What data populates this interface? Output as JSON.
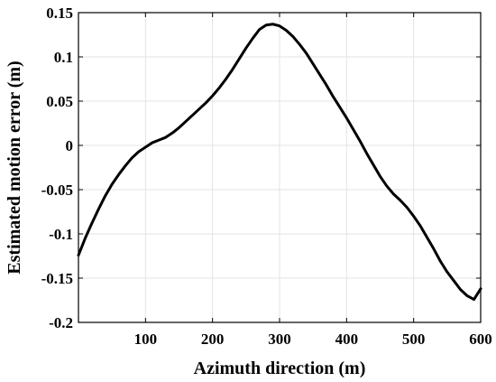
{
  "chart_data": {
    "type": "line",
    "title": "",
    "xlabel": "Azimuth direction (m)",
    "ylabel": "Estimated motion error (m)",
    "xlim": [
      0,
      600
    ],
    "ylim": [
      -0.2,
      0.15
    ],
    "xticks": [
      100,
      200,
      300,
      400,
      500,
      600
    ],
    "xtick_labels": [
      "100",
      "200",
      "300",
      "400",
      "500",
      "600"
    ],
    "yticks": [
      0.15,
      0.1,
      0.05,
      0,
      -0.05,
      -0.1,
      -0.15,
      -0.2
    ],
    "ytick_labels": [
      "0.15",
      "0.1",
      "0.05",
      "0",
      "-0.05",
      "-0.1",
      "-0.15",
      "-0.2"
    ],
    "grid": true,
    "line_color": "#000000",
    "series": [
      {
        "x": [
          0,
          10,
          20,
          30,
          40,
          50,
          60,
          70,
          80,
          90,
          100,
          110,
          120,
          130,
          140,
          150,
          160,
          170,
          180,
          190,
          200,
          210,
          220,
          230,
          240,
          250,
          260,
          270,
          280,
          290,
          300,
          310,
          320,
          330,
          340,
          350,
          360,
          370,
          380,
          390,
          400,
          410,
          420,
          430,
          440,
          450,
          460,
          470,
          480,
          490,
          500,
          510,
          520,
          530,
          540,
          550,
          560,
          570,
          580,
          590,
          595,
          600
        ],
        "values": [
          -0.124,
          -0.105,
          -0.088,
          -0.072,
          -0.057,
          -0.044,
          -0.033,
          -0.023,
          -0.014,
          -0.007,
          -0.002,
          0.003,
          0.006,
          0.009,
          0.014,
          0.02,
          0.027,
          0.034,
          0.041,
          0.048,
          0.056,
          0.065,
          0.075,
          0.086,
          0.098,
          0.11,
          0.121,
          0.131,
          0.136,
          0.137,
          0.135,
          0.13,
          0.123,
          0.114,
          0.104,
          0.092,
          0.08,
          0.068,
          0.055,
          0.043,
          0.031,
          0.018,
          0.005,
          -0.009,
          -0.022,
          -0.035,
          -0.046,
          -0.055,
          -0.062,
          -0.07,
          -0.08,
          -0.091,
          -0.104,
          -0.117,
          -0.131,
          -0.143,
          -0.153,
          -0.163,
          -0.17,
          -0.174,
          -0.168,
          -0.162
        ]
      }
    ]
  }
}
